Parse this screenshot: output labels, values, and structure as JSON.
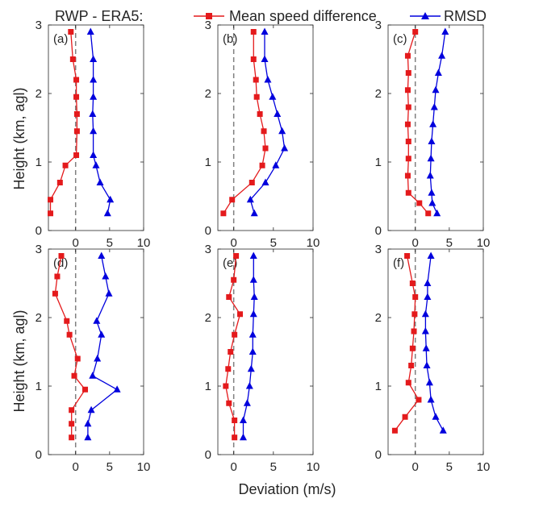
{
  "legend": {
    "prefix": "RWP - ERA5:",
    "entries": [
      {
        "label": "Mean speed difference",
        "color": "#e41a1c",
        "marker": "square"
      },
      {
        "label": "RMSD",
        "color": "#0000dd",
        "marker": "triangle"
      }
    ]
  },
  "xlabel": "Deviation (m/s)",
  "ylabel": "Height  (km, agl)",
  "chart_data": [
    {
      "type": "line",
      "panel": "(a)",
      "xlim": [
        -4,
        10
      ],
      "ylim": [
        0,
        3
      ],
      "xticks": [
        0,
        5,
        10
      ],
      "yticks": [
        0,
        1,
        2,
        3
      ],
      "series": [
        {
          "name": "Mean speed difference",
          "x": [
            -0.7,
            -0.4,
            0.1,
            0.1,
            0.2,
            0.2,
            0.1,
            -1.5,
            -2.3,
            -3.7,
            -3.7
          ],
          "y": [
            2.9,
            2.5,
            2.2,
            1.95,
            1.7,
            1.45,
            1.1,
            0.95,
            0.7,
            0.45,
            0.25
          ]
        },
        {
          "name": "RMSD",
          "x": [
            2.2,
            2.6,
            2.6,
            2.6,
            2.5,
            2.6,
            2.6,
            3.0,
            3.6,
            5.1,
            4.7
          ],
          "y": [
            2.9,
            2.5,
            2.2,
            1.95,
            1.7,
            1.45,
            1.1,
            0.95,
            0.7,
            0.45,
            0.25
          ]
        }
      ]
    },
    {
      "type": "line",
      "panel": "(b)",
      "xlim": [
        -2,
        10
      ],
      "ylim": [
        0,
        3
      ],
      "xticks": [
        0,
        5,
        10
      ],
      "yticks": [
        0,
        1,
        2,
        3
      ],
      "series": [
        {
          "name": "Mean speed difference",
          "x": [
            2.5,
            2.5,
            2.8,
            2.9,
            3.3,
            3.8,
            4.0,
            3.6,
            2.3,
            -0.2,
            -1.3
          ],
          "y": [
            2.9,
            2.5,
            2.2,
            1.95,
            1.7,
            1.45,
            1.2,
            0.95,
            0.7,
            0.45,
            0.25
          ]
        },
        {
          "name": "RMSD",
          "x": [
            3.9,
            3.9,
            4.3,
            4.9,
            5.5,
            6.1,
            6.4,
            5.3,
            4.0,
            2.1,
            2.6
          ],
          "y": [
            2.9,
            2.5,
            2.2,
            1.95,
            1.7,
            1.45,
            1.2,
            0.95,
            0.7,
            0.45,
            0.25
          ]
        }
      ]
    },
    {
      "type": "line",
      "panel": "(c)",
      "xlim": [
        -4,
        10
      ],
      "ylim": [
        0,
        3
      ],
      "xticks": [
        0,
        5,
        10
      ],
      "yticks": [
        0,
        1,
        2,
        3
      ],
      "series": [
        {
          "name": "Mean speed difference",
          "x": [
            0.0,
            -1.1,
            -1.0,
            -1.1,
            -1.0,
            -1.1,
            -1.0,
            -1.0,
            -1.1,
            -1.0,
            0.6,
            1.9
          ],
          "y": [
            2.9,
            2.55,
            2.3,
            2.05,
            1.8,
            1.55,
            1.3,
            1.05,
            0.8,
            0.55,
            0.4,
            0.25
          ]
        },
        {
          "name": "RMSD",
          "x": [
            4.4,
            3.9,
            3.4,
            3.0,
            2.8,
            2.6,
            2.4,
            2.3,
            2.2,
            2.4,
            2.5,
            3.2
          ],
          "y": [
            2.9,
            2.55,
            2.3,
            2.05,
            1.8,
            1.55,
            1.3,
            1.05,
            0.8,
            0.55,
            0.4,
            0.25
          ]
        }
      ]
    },
    {
      "type": "line",
      "panel": "(d)",
      "xlim": [
        -4,
        10
      ],
      "ylim": [
        0,
        3
      ],
      "xticks": [
        0,
        5,
        10
      ],
      "yticks": [
        0,
        1,
        2,
        3
      ],
      "series": [
        {
          "name": "Mean speed difference",
          "x": [
            -2.1,
            -2.7,
            -3.0,
            -1.3,
            -0.9,
            0.3,
            -0.2,
            1.4,
            -0.6,
            -0.6,
            -0.6
          ],
          "y": [
            2.9,
            2.6,
            2.35,
            1.95,
            1.75,
            1.4,
            1.15,
            0.95,
            0.65,
            0.45,
            0.25
          ]
        },
        {
          "name": "RMSD",
          "x": [
            3.8,
            4.4,
            4.9,
            3.1,
            3.8,
            3.2,
            2.5,
            6.1,
            2.3,
            1.8,
            1.8
          ],
          "y": [
            2.9,
            2.6,
            2.35,
            1.95,
            1.75,
            1.4,
            1.15,
            0.95,
            0.65,
            0.45,
            0.25
          ]
        }
      ]
    },
    {
      "type": "line",
      "panel": "(e)",
      "xlim": [
        -2,
        10
      ],
      "ylim": [
        0,
        3
      ],
      "xticks": [
        0,
        5,
        10
      ],
      "yticks": [
        0,
        1,
        2,
        3
      ],
      "series": [
        {
          "name": "Mean speed difference",
          "x": [
            0.3,
            0.0,
            -0.6,
            0.8,
            0.1,
            -0.4,
            -0.7,
            -1.0,
            -0.6,
            0.1,
            0.1
          ],
          "y": [
            2.9,
            2.55,
            2.3,
            2.05,
            1.75,
            1.5,
            1.25,
            1.0,
            0.75,
            0.5,
            0.25
          ]
        },
        {
          "name": "RMSD",
          "x": [
            2.5,
            2.5,
            2.6,
            2.5,
            2.4,
            2.4,
            2.2,
            2.0,
            1.7,
            1.2,
            1.2
          ],
          "y": [
            2.9,
            2.55,
            2.3,
            2.05,
            1.75,
            1.5,
            1.25,
            1.0,
            0.75,
            0.5,
            0.25
          ]
        }
      ]
    },
    {
      "type": "line",
      "panel": "(f)",
      "xlim": [
        -4,
        10
      ],
      "ylim": [
        0,
        3
      ],
      "xticks": [
        0,
        5,
        10
      ],
      "yticks": [
        0,
        1,
        2,
        3
      ],
      "series": [
        {
          "name": "Mean speed difference",
          "x": [
            -1.2,
            -0.4,
            0.0,
            -0.1,
            -0.2,
            -0.4,
            -0.6,
            -1.0,
            0.5,
            -1.5,
            -3.0
          ],
          "y": [
            2.9,
            2.5,
            2.3,
            2.05,
            1.8,
            1.55,
            1.3,
            1.05,
            0.8,
            0.55,
            0.35
          ]
        },
        {
          "name": "RMSD",
          "x": [
            2.3,
            1.8,
            1.8,
            1.5,
            1.5,
            1.6,
            1.7,
            2.1,
            2.3,
            3.0,
            4.1
          ],
          "y": [
            2.9,
            2.5,
            2.3,
            2.05,
            1.8,
            1.55,
            1.3,
            1.05,
            0.8,
            0.55,
            0.35
          ]
        }
      ]
    }
  ]
}
